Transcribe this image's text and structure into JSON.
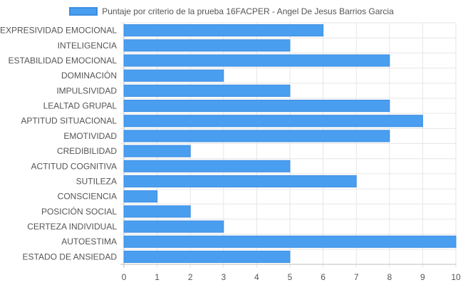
{
  "chart_data": {
    "type": "bar",
    "orientation": "horizontal",
    "legend_position": "top",
    "grid": true,
    "xlim": [
      0,
      10
    ],
    "x_ticks": [
      "0",
      "1",
      "2",
      "3",
      "4",
      "5",
      "6",
      "7",
      "8",
      "9",
      "10"
    ],
    "series": [
      {
        "name": "Puntaje por criterio de la prueba 16FACPER - Angel De Jesus Barrios Garcia",
        "color": "#4a9eef",
        "border_color": "#3c8ee3",
        "values": [
          6,
          5,
          8,
          3,
          5,
          8,
          9,
          8,
          2,
          5,
          7,
          1,
          2,
          3,
          10,
          5
        ]
      }
    ],
    "categories": [
      "EXPRESIVIDAD EMOCIONAL",
      "INTELIGENCIA",
      "ESTABILIDAD EMOCIONAL",
      "DOMINACIÓN",
      "IMPULSIVIDAD",
      "LEALTAD GRUPAL",
      "APTITUD SITUACIONAL",
      "EMOTIVIDAD",
      "CREDIBILIDAD",
      "ACTITUD COGNITIVA",
      "SUTILEZA",
      "CONSCIENCIA",
      "POSICIÓN SOCIAL",
      "CERTEZA INDIVIDUAL",
      "AUTOESTIMA",
      "ESTADO DE ANSIEDAD"
    ],
    "colors": {
      "grid": "#e6e6e6",
      "axis": "#bdbdbd",
      "text": "#555555"
    }
  }
}
